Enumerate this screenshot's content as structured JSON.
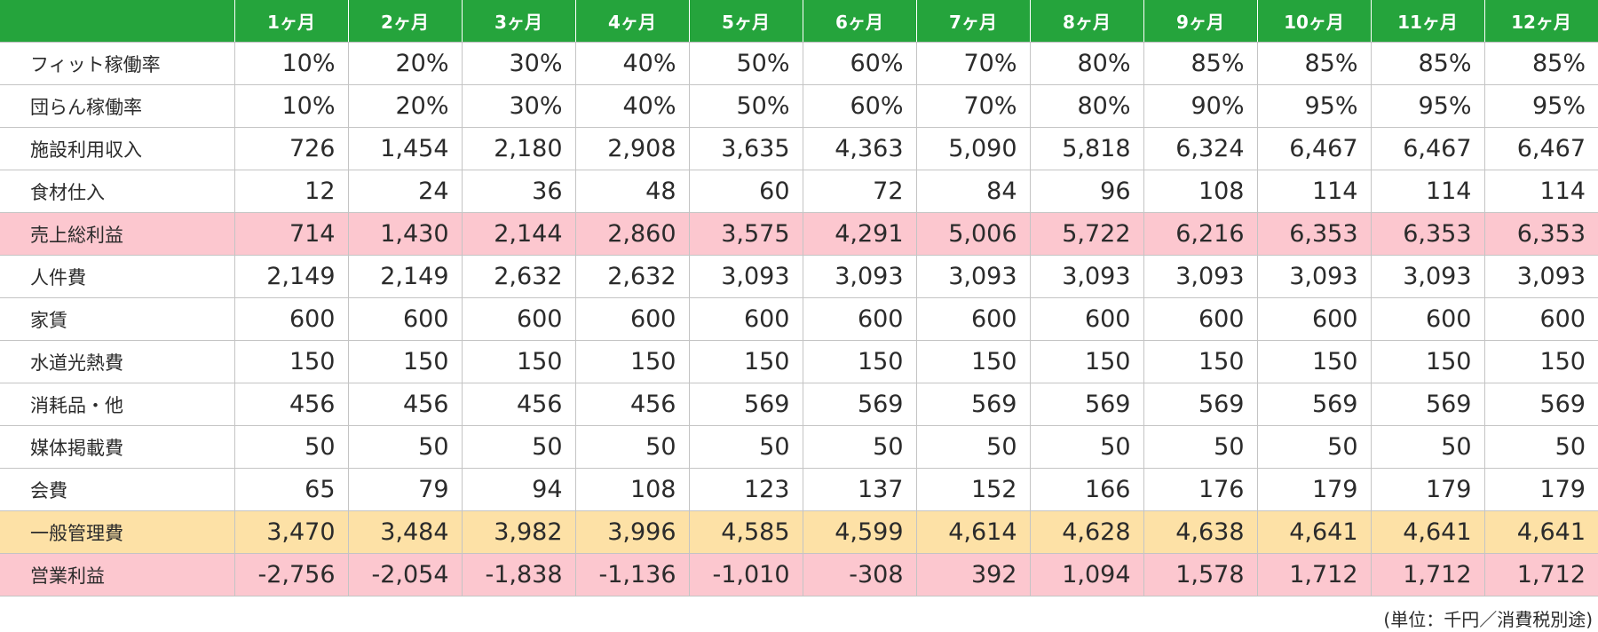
{
  "table": {
    "header_corner": "",
    "months": [
      "1ヶ月",
      "2ヶ月",
      "3ヶ月",
      "4ヶ月",
      "5ヶ月",
      "6ヶ月",
      "7ヶ月",
      "8ヶ月",
      "9ヶ月",
      "10ヶ月",
      "11ヶ月",
      "12ヶ月"
    ],
    "rows": [
      {
        "label": "フィット稼働率",
        "highlight": "none",
        "values": [
          "10%",
          "20%",
          "30%",
          "40%",
          "50%",
          "60%",
          "70%",
          "80%",
          "85%",
          "85%",
          "85%",
          "85%"
        ]
      },
      {
        "label": "団らん稼働率",
        "highlight": "none",
        "values": [
          "10%",
          "20%",
          "30%",
          "40%",
          "50%",
          "60%",
          "70%",
          "80%",
          "90%",
          "95%",
          "95%",
          "95%"
        ]
      },
      {
        "label": "施設利用収入",
        "highlight": "none",
        "values": [
          "726",
          "1,454",
          "2,180",
          "2,908",
          "3,635",
          "4,363",
          "5,090",
          "5,818",
          "6,324",
          "6,467",
          "6,467",
          "6,467"
        ]
      },
      {
        "label": "食材仕入",
        "highlight": "none",
        "values": [
          "12",
          "24",
          "36",
          "48",
          "60",
          "72",
          "84",
          "96",
          "108",
          "114",
          "114",
          "114"
        ]
      },
      {
        "label": "売上総利益",
        "highlight": "pink",
        "values": [
          "714",
          "1,430",
          "2,144",
          "2,860",
          "3,575",
          "4,291",
          "5,006",
          "5,722",
          "6,216",
          "6,353",
          "6,353",
          "6,353"
        ]
      },
      {
        "label": "人件費",
        "highlight": "none",
        "values": [
          "2,149",
          "2,149",
          "2,632",
          "2,632",
          "3,093",
          "3,093",
          "3,093",
          "3,093",
          "3,093",
          "3,093",
          "3,093",
          "3,093"
        ]
      },
      {
        "label": "家賃",
        "highlight": "none",
        "values": [
          "600",
          "600",
          "600",
          "600",
          "600",
          "600",
          "600",
          "600",
          "600",
          "600",
          "600",
          "600"
        ]
      },
      {
        "label": "水道光熱費",
        "highlight": "none",
        "values": [
          "150",
          "150",
          "150",
          "150",
          "150",
          "150",
          "150",
          "150",
          "150",
          "150",
          "150",
          "150"
        ]
      },
      {
        "label": "消耗品・他",
        "highlight": "none",
        "values": [
          "456",
          "456",
          "456",
          "456",
          "569",
          "569",
          "569",
          "569",
          "569",
          "569",
          "569",
          "569"
        ]
      },
      {
        "label": "媒体掲載費",
        "highlight": "none",
        "values": [
          "50",
          "50",
          "50",
          "50",
          "50",
          "50",
          "50",
          "50",
          "50",
          "50",
          "50",
          "50"
        ]
      },
      {
        "label": "会費",
        "highlight": "none",
        "values": [
          "65",
          "79",
          "94",
          "108",
          "123",
          "137",
          "152",
          "166",
          "176",
          "179",
          "179",
          "179"
        ]
      },
      {
        "label": "一般管理費",
        "highlight": "yellow",
        "values": [
          "3,470",
          "3,484",
          "3,982",
          "3,996",
          "4,585",
          "4,599",
          "4,614",
          "4,628",
          "4,638",
          "4,641",
          "4,641",
          "4,641"
        ]
      },
      {
        "label": "営業利益",
        "highlight": "pink",
        "values": [
          "-2,756",
          "-2,054",
          "-1,838",
          "-1,136",
          "-1,010",
          "-308",
          "392",
          "1,094",
          "1,578",
          "1,712",
          "1,712",
          "1,712"
        ]
      }
    ]
  },
  "unit_note": "(単位：千円／消費税別途)",
  "colors": {
    "header_bg": "#25a43c",
    "highlight_pink": "#fcc7cf",
    "highlight_yellow": "#fde1a6",
    "grid": "#c4c4c4"
  }
}
